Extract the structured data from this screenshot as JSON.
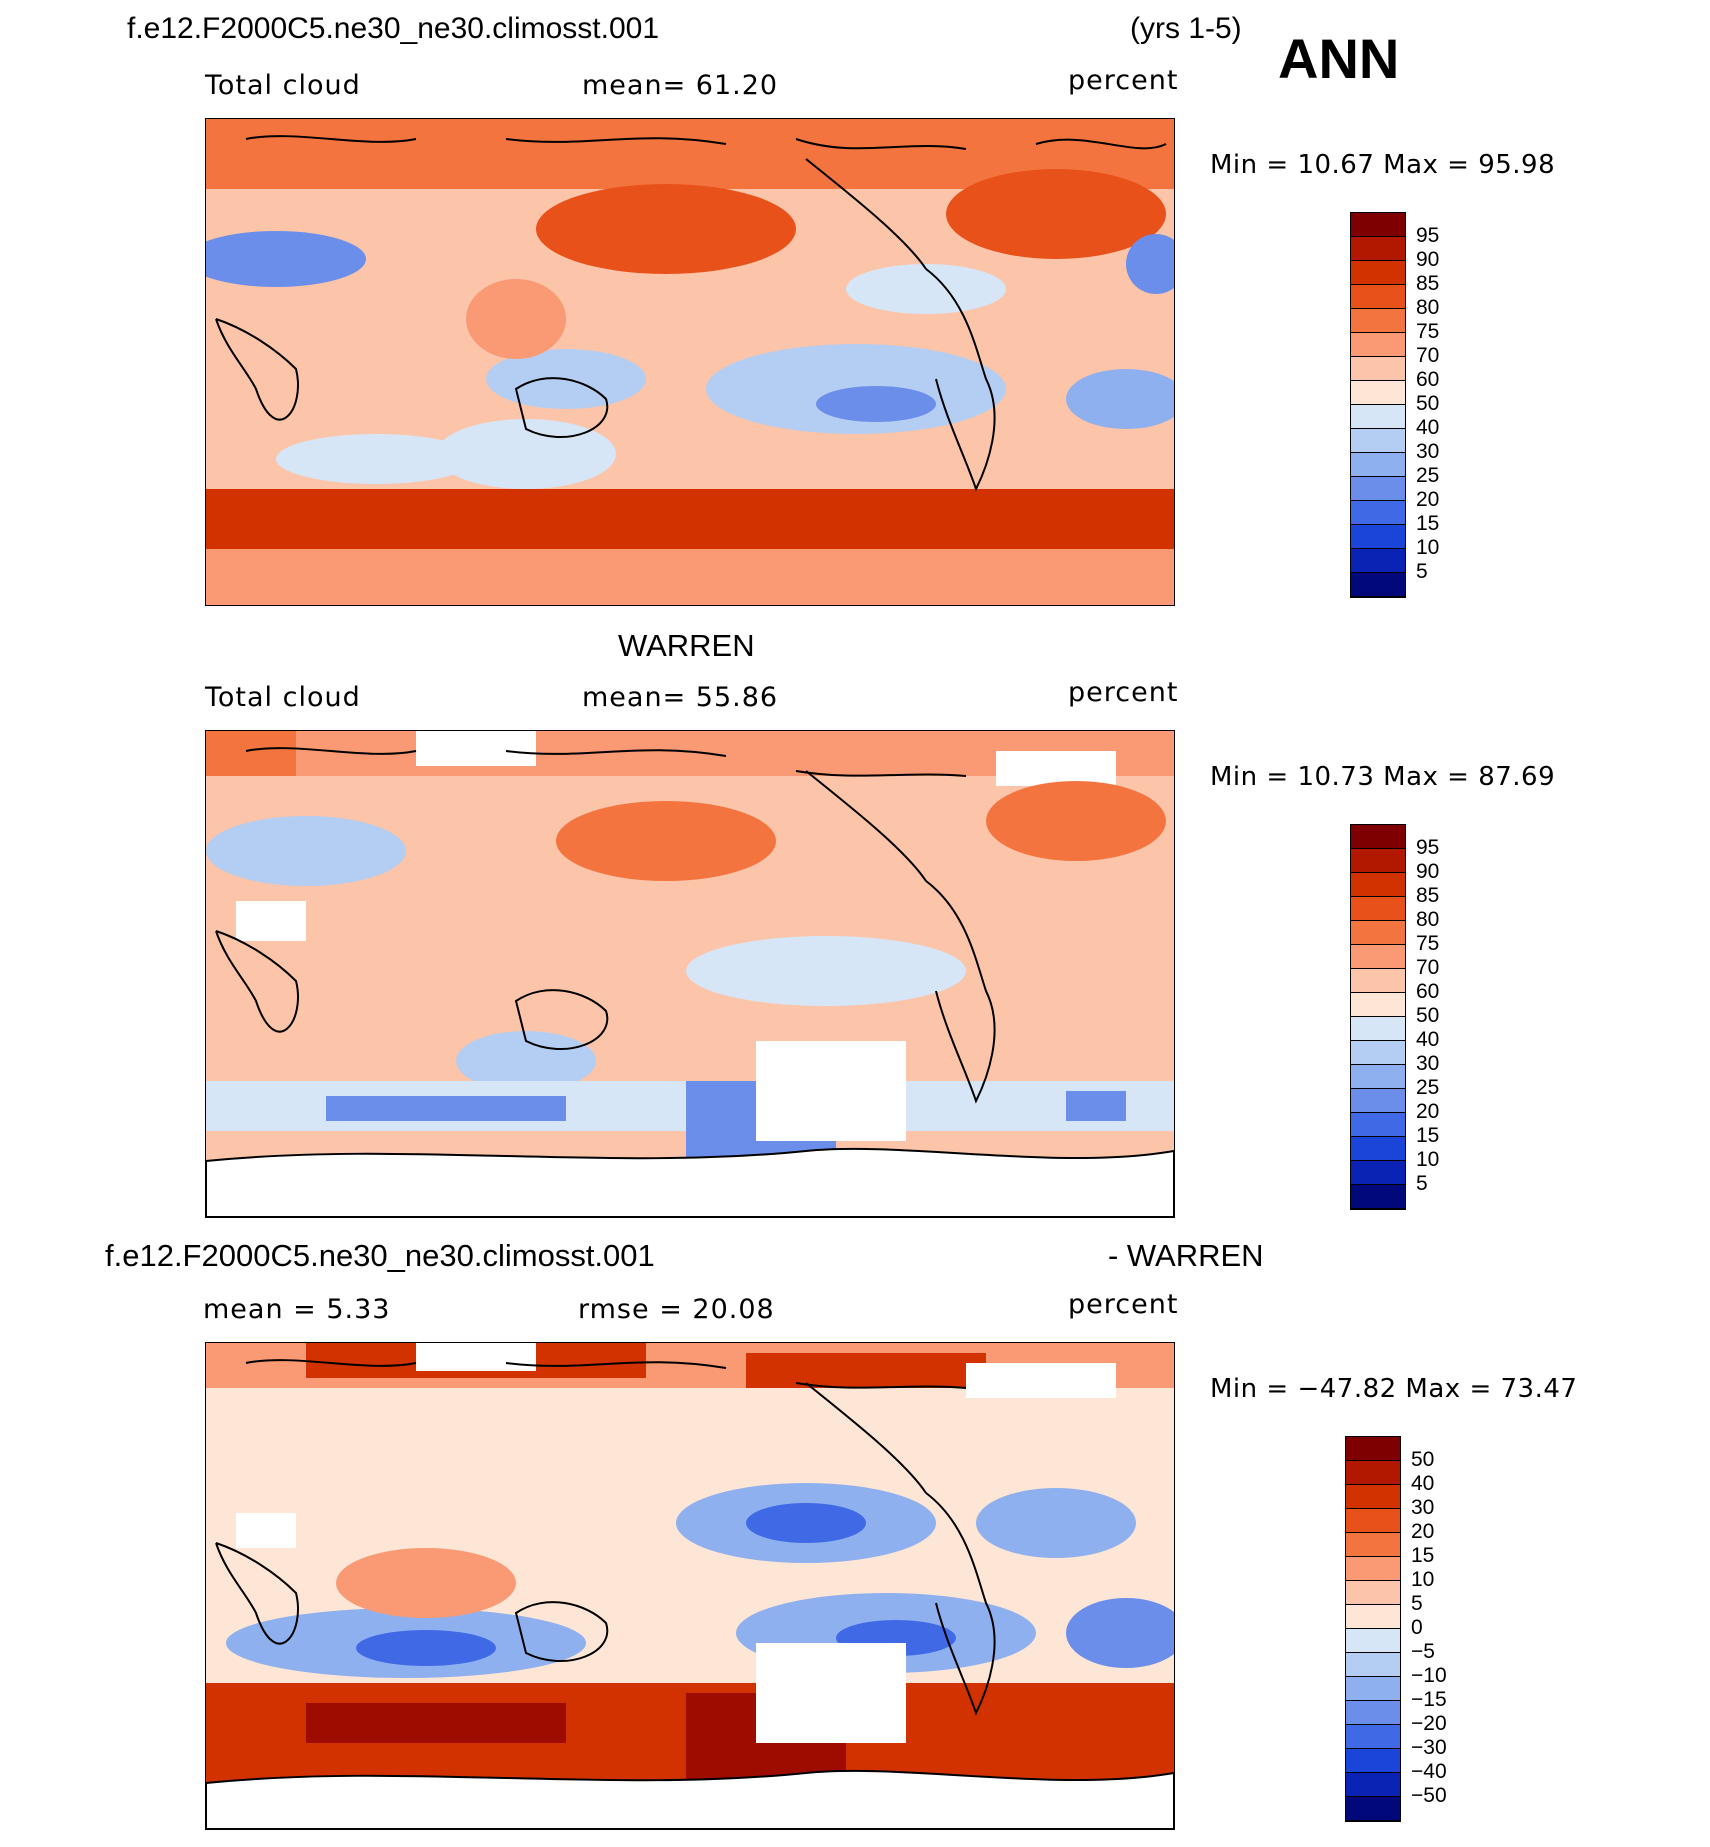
{
  "header": {
    "case_name": "f.e12.F2000C5.ne30_ne30.climosst.001",
    "years": "(yrs 1-5)",
    "season": "ANN"
  },
  "panels": [
    {
      "id": "model",
      "title": "",
      "variable": "Total cloud",
      "stat_left": "mean=   61.20",
      "units": "percent",
      "minmax": "Min  =    10.67  Max  =    95.98",
      "colorbar": {
        "labels": [
          "95",
          "90",
          "85",
          "80",
          "75",
          "70",
          "60",
          "50",
          "40",
          "30",
          "25",
          "20",
          "15",
          "10",
          "5"
        ],
        "colors": [
          "#7f0000",
          "#b21800",
          "#d23200",
          "#e8521a",
          "#f47440",
          "#f99a74",
          "#fcc4a8",
          "#fde6d6",
          "#d6e6f7",
          "#b4cdf2",
          "#8fb0ee",
          "#6b8eea",
          "#4069e6",
          "#1b45d8",
          "#0a23b4",
          "#00087a"
        ]
      }
    },
    {
      "id": "obs",
      "title": "WARREN",
      "variable": "Total cloud",
      "stat_left": "mean=   55.86",
      "units": "percent",
      "minmax": "Min  =    10.73  Max  =    87.69",
      "colorbar": {
        "labels": [
          "95",
          "90",
          "85",
          "80",
          "75",
          "70",
          "60",
          "50",
          "40",
          "30",
          "25",
          "20",
          "15",
          "10",
          "5"
        ],
        "colors": [
          "#7f0000",
          "#b21800",
          "#d23200",
          "#e8521a",
          "#f47440",
          "#f99a74",
          "#fcc4a8",
          "#fde6d6",
          "#d6e6f7",
          "#b4cdf2",
          "#8fb0ee",
          "#6b8eea",
          "#4069e6",
          "#1b45d8",
          "#0a23b4",
          "#00087a"
        ]
      }
    },
    {
      "id": "diff",
      "title_left": "f.e12.F2000C5.ne30_ne30.climosst.001",
      "title_right": "- WARREN",
      "stat_left": "mean  =     5.33",
      "stat_mid": "rmse  =    20.08",
      "units": "percent",
      "minmax": "Min  =  −47.82  Max  =    73.47",
      "colorbar": {
        "labels": [
          "50",
          "40",
          "30",
          "20",
          "15",
          "10",
          "5",
          "0",
          "−5",
          "−10",
          "−15",
          "−20",
          "−30",
          "−40",
          "−50"
        ],
        "colors": [
          "#7f0000",
          "#b21800",
          "#d23200",
          "#e8521a",
          "#f47440",
          "#f99a74",
          "#fcc4a8",
          "#fde6d6",
          "#d6e6f7",
          "#b4cdf2",
          "#8fb0ee",
          "#6b8eea",
          "#4069e6",
          "#1b45d8",
          "#0a23b4",
          "#00087a"
        ]
      }
    }
  ],
  "colors": {
    "land_outline": "#000000",
    "missing": "#ffffff"
  }
}
